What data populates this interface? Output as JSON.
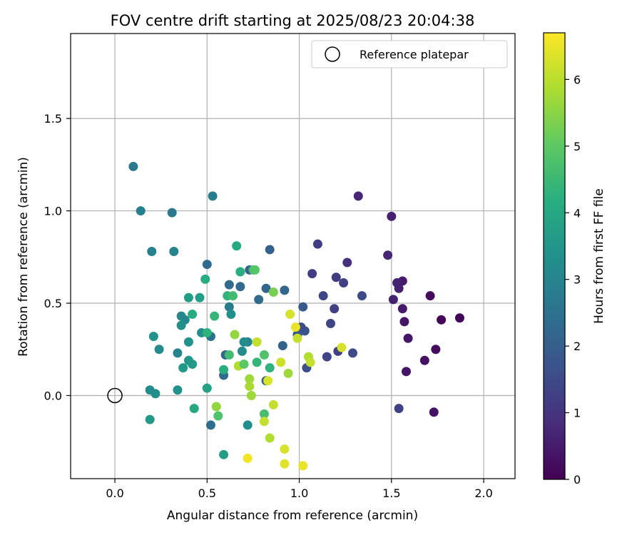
{
  "chart_data": {
    "type": "scatter",
    "title": "FOV centre drift starting at 2025/08/23 20:04:38",
    "xlabel": "Angular distance from reference (arcmin)",
    "ylabel": "Rotation from reference (arcmin)",
    "xlim": [
      -0.24,
      2.17
    ],
    "ylim": [
      -0.45,
      1.96
    ],
    "xticks": [
      "0.0",
      "0.5",
      "1.0",
      "1.5",
      "2.0"
    ],
    "yticks": [
      "0.0",
      "0.5",
      "1.0",
      "1.5"
    ],
    "grid": true,
    "legend_position": "top-right",
    "legend": {
      "reference_label": "Reference platepar"
    },
    "reference_point": [
      0,
      0
    ],
    "colorbar": {
      "label": "Hours from first FF file",
      "colormap": "viridis",
      "range": [
        0,
        6.7
      ],
      "ticks": [
        "0",
        "1",
        "2",
        "3",
        "4",
        "5",
        "6"
      ]
    },
    "points": [
      [
        1.87,
        0.42,
        0.1
      ],
      [
        1.77,
        0.41,
        0.1
      ],
      [
        1.71,
        0.54,
        0.2
      ],
      [
        1.74,
        0.25,
        0.2
      ],
      [
        1.68,
        0.19,
        0.3
      ],
      [
        1.73,
        -0.09,
        0.3
      ],
      [
        1.58,
        0.13,
        0.4
      ],
      [
        1.59,
        0.31,
        0.4
      ],
      [
        1.57,
        0.4,
        0.4
      ],
      [
        1.56,
        0.47,
        0.5
      ],
      [
        1.56,
        0.62,
        0.5
      ],
      [
        1.53,
        0.61,
        0.6
      ],
      [
        1.54,
        0.58,
        0.6
      ],
      [
        1.51,
        0.52,
        0.6
      ],
      [
        1.5,
        0.97,
        0.6
      ],
      [
        1.48,
        0.76,
        0.7
      ],
      [
        1.32,
        1.08,
        0.7
      ],
      [
        1.26,
        0.72,
        0.9
      ],
      [
        1.54,
        -0.07,
        1.3
      ],
      [
        1.34,
        0.54,
        1.5
      ],
      [
        1.29,
        0.23,
        1.5
      ],
      [
        1.24,
        0.61,
        1.3
      ],
      [
        1.2,
        0.64,
        1.2
      ],
      [
        1.19,
        0.47,
        1.3
      ],
      [
        1.21,
        0.24,
        1.3
      ],
      [
        1.17,
        0.39,
        1.4
      ],
      [
        1.15,
        0.21,
        1.4
      ],
      [
        1.13,
        0.54,
        1.4
      ],
      [
        1.1,
        0.82,
        1.2
      ],
      [
        1.07,
        0.66,
        1.2
      ],
      [
        1.04,
        0.15,
        1.6
      ],
      [
        1.03,
        0.35,
        1.7
      ],
      [
        1.02,
        0.48,
        1.9
      ],
      [
        1.01,
        0.37,
        1.6
      ],
      [
        0.99,
        0.33,
        1.8
      ],
      [
        0.91,
        0.27,
        2.1
      ],
      [
        0.92,
        0.57,
        2.2
      ],
      [
        0.82,
        0.58,
        2.2
      ],
      [
        0.84,
        0.79,
        2.1
      ],
      [
        0.82,
        0.08,
        2.1
      ],
      [
        0.73,
        0.68,
        2.1
      ],
      [
        0.78,
        0.52,
        2.3
      ],
      [
        0.68,
        0.59,
        2.3
      ],
      [
        0.62,
        0.6,
        2.3
      ],
      [
        0.6,
        0.22,
        2.2
      ],
      [
        0.59,
        0.11,
        2.3
      ],
      [
        0.52,
        -0.16,
        2.4
      ],
      [
        0.5,
        0.71,
        2.3
      ],
      [
        0.52,
        0.32,
        2.5
      ],
      [
        0.53,
        1.08,
        2.8
      ],
      [
        0.62,
        0.48,
        2.8
      ],
      [
        0.63,
        0.44,
        3.3
      ],
      [
        0.69,
        0.24,
        3.2
      ],
      [
        0.72,
        0.29,
        3.0
      ],
      [
        0.72,
        -0.16,
        3.3
      ],
      [
        0.59,
        -0.32,
        3.7
      ],
      [
        0.47,
        0.34,
        3.3
      ],
      [
        0.46,
        0.53,
        3.7
      ],
      [
        0.4,
        0.29,
        3.4
      ],
      [
        0.4,
        0.53,
        3.7
      ],
      [
        0.38,
        0.41,
        3.1
      ],
      [
        0.36,
        0.43,
        3.1
      ],
      [
        0.36,
        0.38,
        3.3
      ],
      [
        0.37,
        0.15,
        3.6
      ],
      [
        0.34,
        0.23,
        3.0
      ],
      [
        0.34,
        0.03,
        3.4
      ],
      [
        0.31,
        0.99,
        2.7
      ],
      [
        0.32,
        0.78,
        3.0
      ],
      [
        0.24,
        0.25,
        3.2
      ],
      [
        0.21,
        0.32,
        3.4
      ],
      [
        0.22,
        0.01,
        3.3
      ],
      [
        0.19,
        0.03,
        3.2
      ],
      [
        0.19,
        -0.13,
        3.6
      ],
      [
        0.2,
        0.78,
        2.9
      ],
      [
        0.14,
        1.0,
        2.9
      ],
      [
        0.1,
        1.24,
        2.7
      ],
      [
        0.4,
        0.19,
        3.5
      ],
      [
        0.42,
        0.17,
        3.6
      ],
      [
        0.42,
        0.44,
        4.1
      ],
      [
        0.43,
        -0.07,
        4.0
      ],
      [
        0.49,
        0.63,
        4.1
      ],
      [
        0.5,
        0.34,
        4.3
      ],
      [
        0.5,
        0.04,
        3.8
      ],
      [
        0.54,
        0.43,
        4.4
      ],
      [
        0.59,
        0.14,
        4.2
      ],
      [
        0.61,
        0.54,
        4.3
      ],
      [
        0.62,
        0.22,
        4.6
      ],
      [
        0.64,
        0.54,
        4.6
      ],
      [
        0.66,
        0.81,
        4.0
      ],
      [
        0.68,
        0.67,
        4.2
      ],
      [
        0.7,
        0.29,
        3.2
      ],
      [
        0.75,
        0.68,
        4.6
      ],
      [
        0.76,
        0.68,
        4.9
      ],
      [
        0.77,
        0.18,
        4.4
      ],
      [
        0.81,
        0.22,
        4.8
      ],
      [
        0.81,
        -0.1,
        4.7
      ],
      [
        0.84,
        0.15,
        4.3
      ],
      [
        0.86,
        0.56,
        5.3
      ],
      [
        0.56,
        -0.11,
        4.8
      ],
      [
        0.55,
        -0.06,
        5.6
      ],
      [
        0.65,
        0.33,
        5.6
      ],
      [
        0.67,
        0.16,
        5.9
      ],
      [
        0.7,
        0.17,
        5.0
      ],
      [
        0.73,
        0.09,
        5.7
      ],
      [
        0.73,
        0.05,
        5.8
      ],
      [
        0.74,
        0.0,
        5.7
      ],
      [
        0.77,
        0.29,
        6.1
      ],
      [
        0.81,
        -0.14,
        6.1
      ],
      [
        0.83,
        0.08,
        6.3
      ],
      [
        0.84,
        -0.23,
        5.9
      ],
      [
        0.86,
        -0.05,
        6.1
      ],
      [
        0.9,
        0.18,
        6.2
      ],
      [
        0.92,
        -0.29,
        6.3
      ],
      [
        0.92,
        -0.37,
        6.4
      ],
      [
        0.94,
        0.12,
        5.7
      ],
      [
        0.95,
        0.44,
        6.3
      ],
      [
        0.98,
        0.37,
        6.5
      ],
      [
        0.99,
        0.31,
        6.1
      ],
      [
        1.02,
        -0.38,
        6.5
      ],
      [
        1.05,
        0.21,
        5.9
      ],
      [
        1.06,
        0.18,
        6.1
      ],
      [
        1.23,
        0.26,
        6.3
      ],
      [
        0.72,
        -0.34,
        6.6
      ]
    ]
  }
}
